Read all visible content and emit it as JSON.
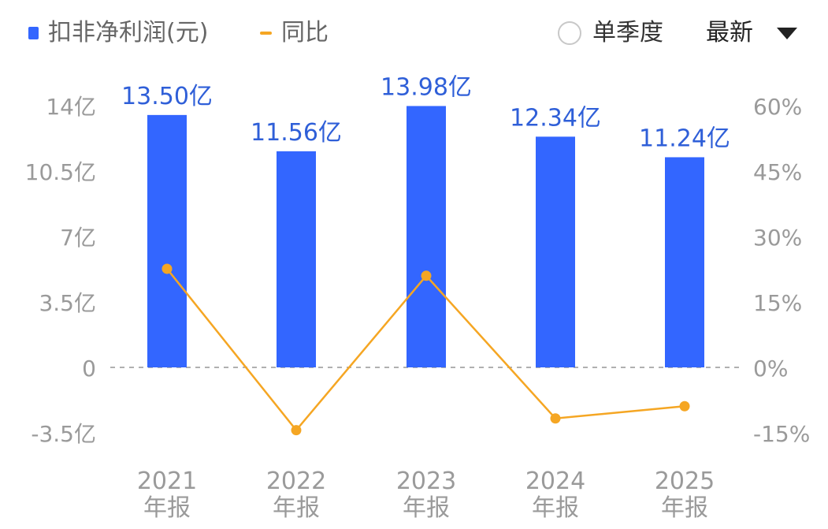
{
  "legend": {
    "bar_label": "扣非净利润(元)",
    "line_label": "同比"
  },
  "controls": {
    "single_quarter_label": "单季度",
    "period_selected": "最新"
  },
  "colors": {
    "bar": "#3366ff",
    "line": "#f5a623",
    "bar_label": "#2f5fd8",
    "axis_text": "#9a9a9a",
    "zero_line": "#b0b0b0"
  },
  "chart_data": {
    "type": "bar",
    "categories": [
      {
        "year": "2021",
        "period": "年报"
      },
      {
        "year": "2022",
        "period": "年报"
      },
      {
        "year": "2023",
        "period": "年报"
      },
      {
        "year": "2024",
        "period": "年报"
      },
      {
        "year": "2025",
        "period": "年报"
      }
    ],
    "series": [
      {
        "name": "扣非净利润(元)",
        "type": "bar",
        "axis": "left",
        "values": [
          13.5,
          11.56,
          13.98,
          12.34,
          11.24
        ],
        "labels": [
          "13.50亿",
          "11.56亿",
          "13.98亿",
          "12.34亿",
          "11.24亿"
        ]
      },
      {
        "name": "同比",
        "type": "line",
        "axis": "right",
        "values": [
          22.6,
          -14.4,
          21.0,
          -11.7,
          -8.9
        ]
      }
    ],
    "left_axis": {
      "min": -3.5,
      "max": 14,
      "ticks": [
        14,
        10.5,
        7,
        3.5,
        0,
        -3.5
      ],
      "tick_labels": [
        "14亿",
        "10.5亿",
        "7亿",
        "3.5亿",
        "0",
        "-3.5亿"
      ]
    },
    "right_axis": {
      "min": -15,
      "max": 60,
      "ticks": [
        60,
        45,
        30,
        15,
        0,
        -15
      ],
      "tick_labels": [
        "60%",
        "45%",
        "30%",
        "15%",
        "0%",
        "-15%"
      ]
    },
    "grid": false,
    "zero_line": "dashed",
    "legend_position": "top-left"
  }
}
